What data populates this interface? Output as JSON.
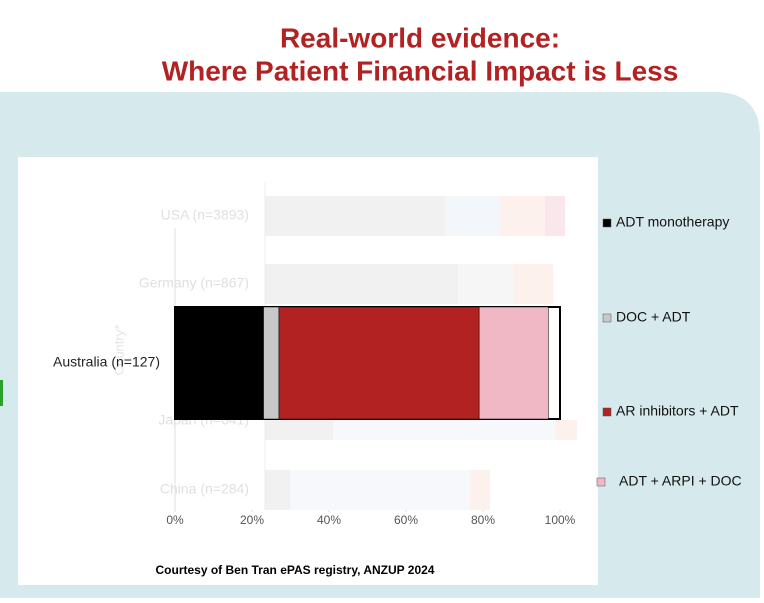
{
  "chart_data": {
    "type": "stacked-barh",
    "title": [
      "Real-world evidence:",
      "Where Patient Financial Impact is Less"
    ],
    "faded_categories": [
      "USA (n=3893)",
      "Germany (n=867)",
      "Japan (n=641)",
      "China (n=284)"
    ],
    "faded_axis_label": "Country*",
    "categories": [
      "Australia (n=127)"
    ],
    "series": [
      {
        "name": "ADT monotherapy",
        "color": "#000000",
        "values": [
          23
        ]
      },
      {
        "name": "DOC + ADT",
        "color": "#c8c8c8",
        "values": [
          4
        ]
      },
      {
        "name": "AR inhibitors + ADT",
        "color": "#b22222",
        "values": [
          52
        ]
      },
      {
        "name": "ADT + ARPI + DOC",
        "color": "#f0b8c4",
        "values": [
          18
        ]
      }
    ],
    "xlim": [
      0,
      100
    ],
    "xticks": [
      {
        "value": 0,
        "label": "0%"
      },
      {
        "value": 20,
        "label": "20%"
      },
      {
        "value": 40,
        "label": "40%"
      },
      {
        "value": 60,
        "label": "60%"
      },
      {
        "value": 80,
        "label": "80%"
      },
      {
        "value": 100,
        "label": "100%"
      }
    ],
    "footnote": "Courtesy of Ben Tran ePAS registry, ANZUP 2024"
  }
}
